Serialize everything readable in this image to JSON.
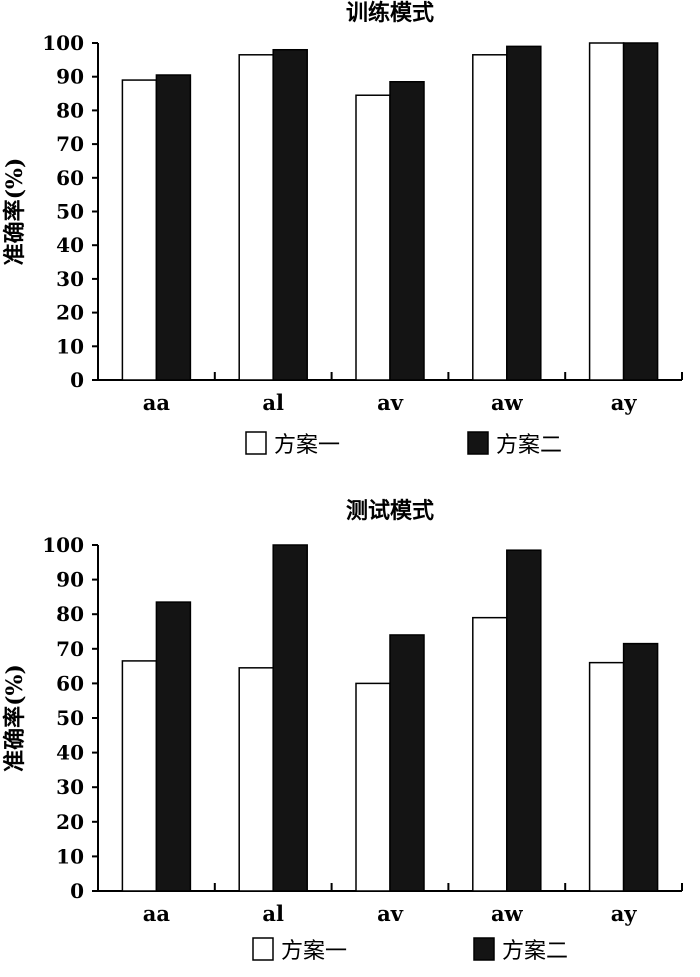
{
  "chart_data": [
    {
      "type": "bar",
      "title": "训练模式",
      "ylabel": "准确率(%)",
      "xlabel": "",
      "categories": [
        "aa",
        "al",
        "av",
        "aw",
        "ay"
      ],
      "ylim": [
        0,
        100
      ],
      "yticks": [
        0,
        10,
        20,
        30,
        40,
        50,
        60,
        70,
        80,
        90,
        100
      ],
      "series": [
        {
          "name": "方案一",
          "values": [
            89,
            96.5,
            84.5,
            96.5,
            100
          ],
          "color": "#ffffff"
        },
        {
          "name": "方案二",
          "values": [
            90.5,
            98,
            88.5,
            99,
            100
          ],
          "color": "#141414"
        }
      ],
      "legend": "bottom-center",
      "grid": false
    },
    {
      "type": "bar",
      "title": "测试模式",
      "ylabel": "准确率(%)",
      "xlabel": "",
      "categories": [
        "aa",
        "al",
        "av",
        "aw",
        "ay"
      ],
      "ylim": [
        0,
        100
      ],
      "yticks": [
        0,
        10,
        20,
        30,
        40,
        50,
        60,
        70,
        80,
        90,
        100
      ],
      "series": [
        {
          "name": "方案一",
          "values": [
            66.5,
            64.5,
            60,
            79,
            66
          ],
          "color": "#ffffff"
        },
        {
          "name": "方案二",
          "values": [
            83.5,
            100,
            74,
            98.5,
            71.5
          ],
          "color": "#141414"
        }
      ],
      "legend": "bottom-center",
      "grid": false
    }
  ]
}
